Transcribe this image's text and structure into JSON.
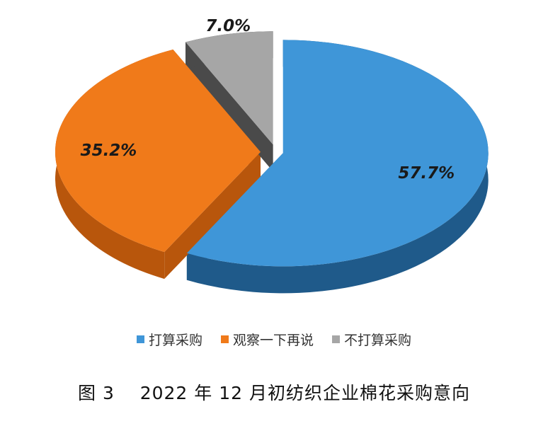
{
  "chart_data": {
    "type": "pie",
    "style": "3d-exploded",
    "categories": [
      "打算采购",
      "观察一下再说",
      "不打算采购"
    ],
    "values": [
      57.7,
      35.2,
      7.0
    ],
    "value_labels": [
      "57.7%",
      "35.2%",
      "7.0%"
    ],
    "colors": [
      "#3f96d8",
      "#f07a1a",
      "#a6a6a6"
    ],
    "side_colors": [
      "#1f5a8a",
      "#b8560c",
      "#4a4a4a"
    ],
    "legend_position": "bottom"
  },
  "caption": {
    "figure_no": "图 3",
    "text": "2022 年 12 月初纺织企业棉花采购意向"
  }
}
